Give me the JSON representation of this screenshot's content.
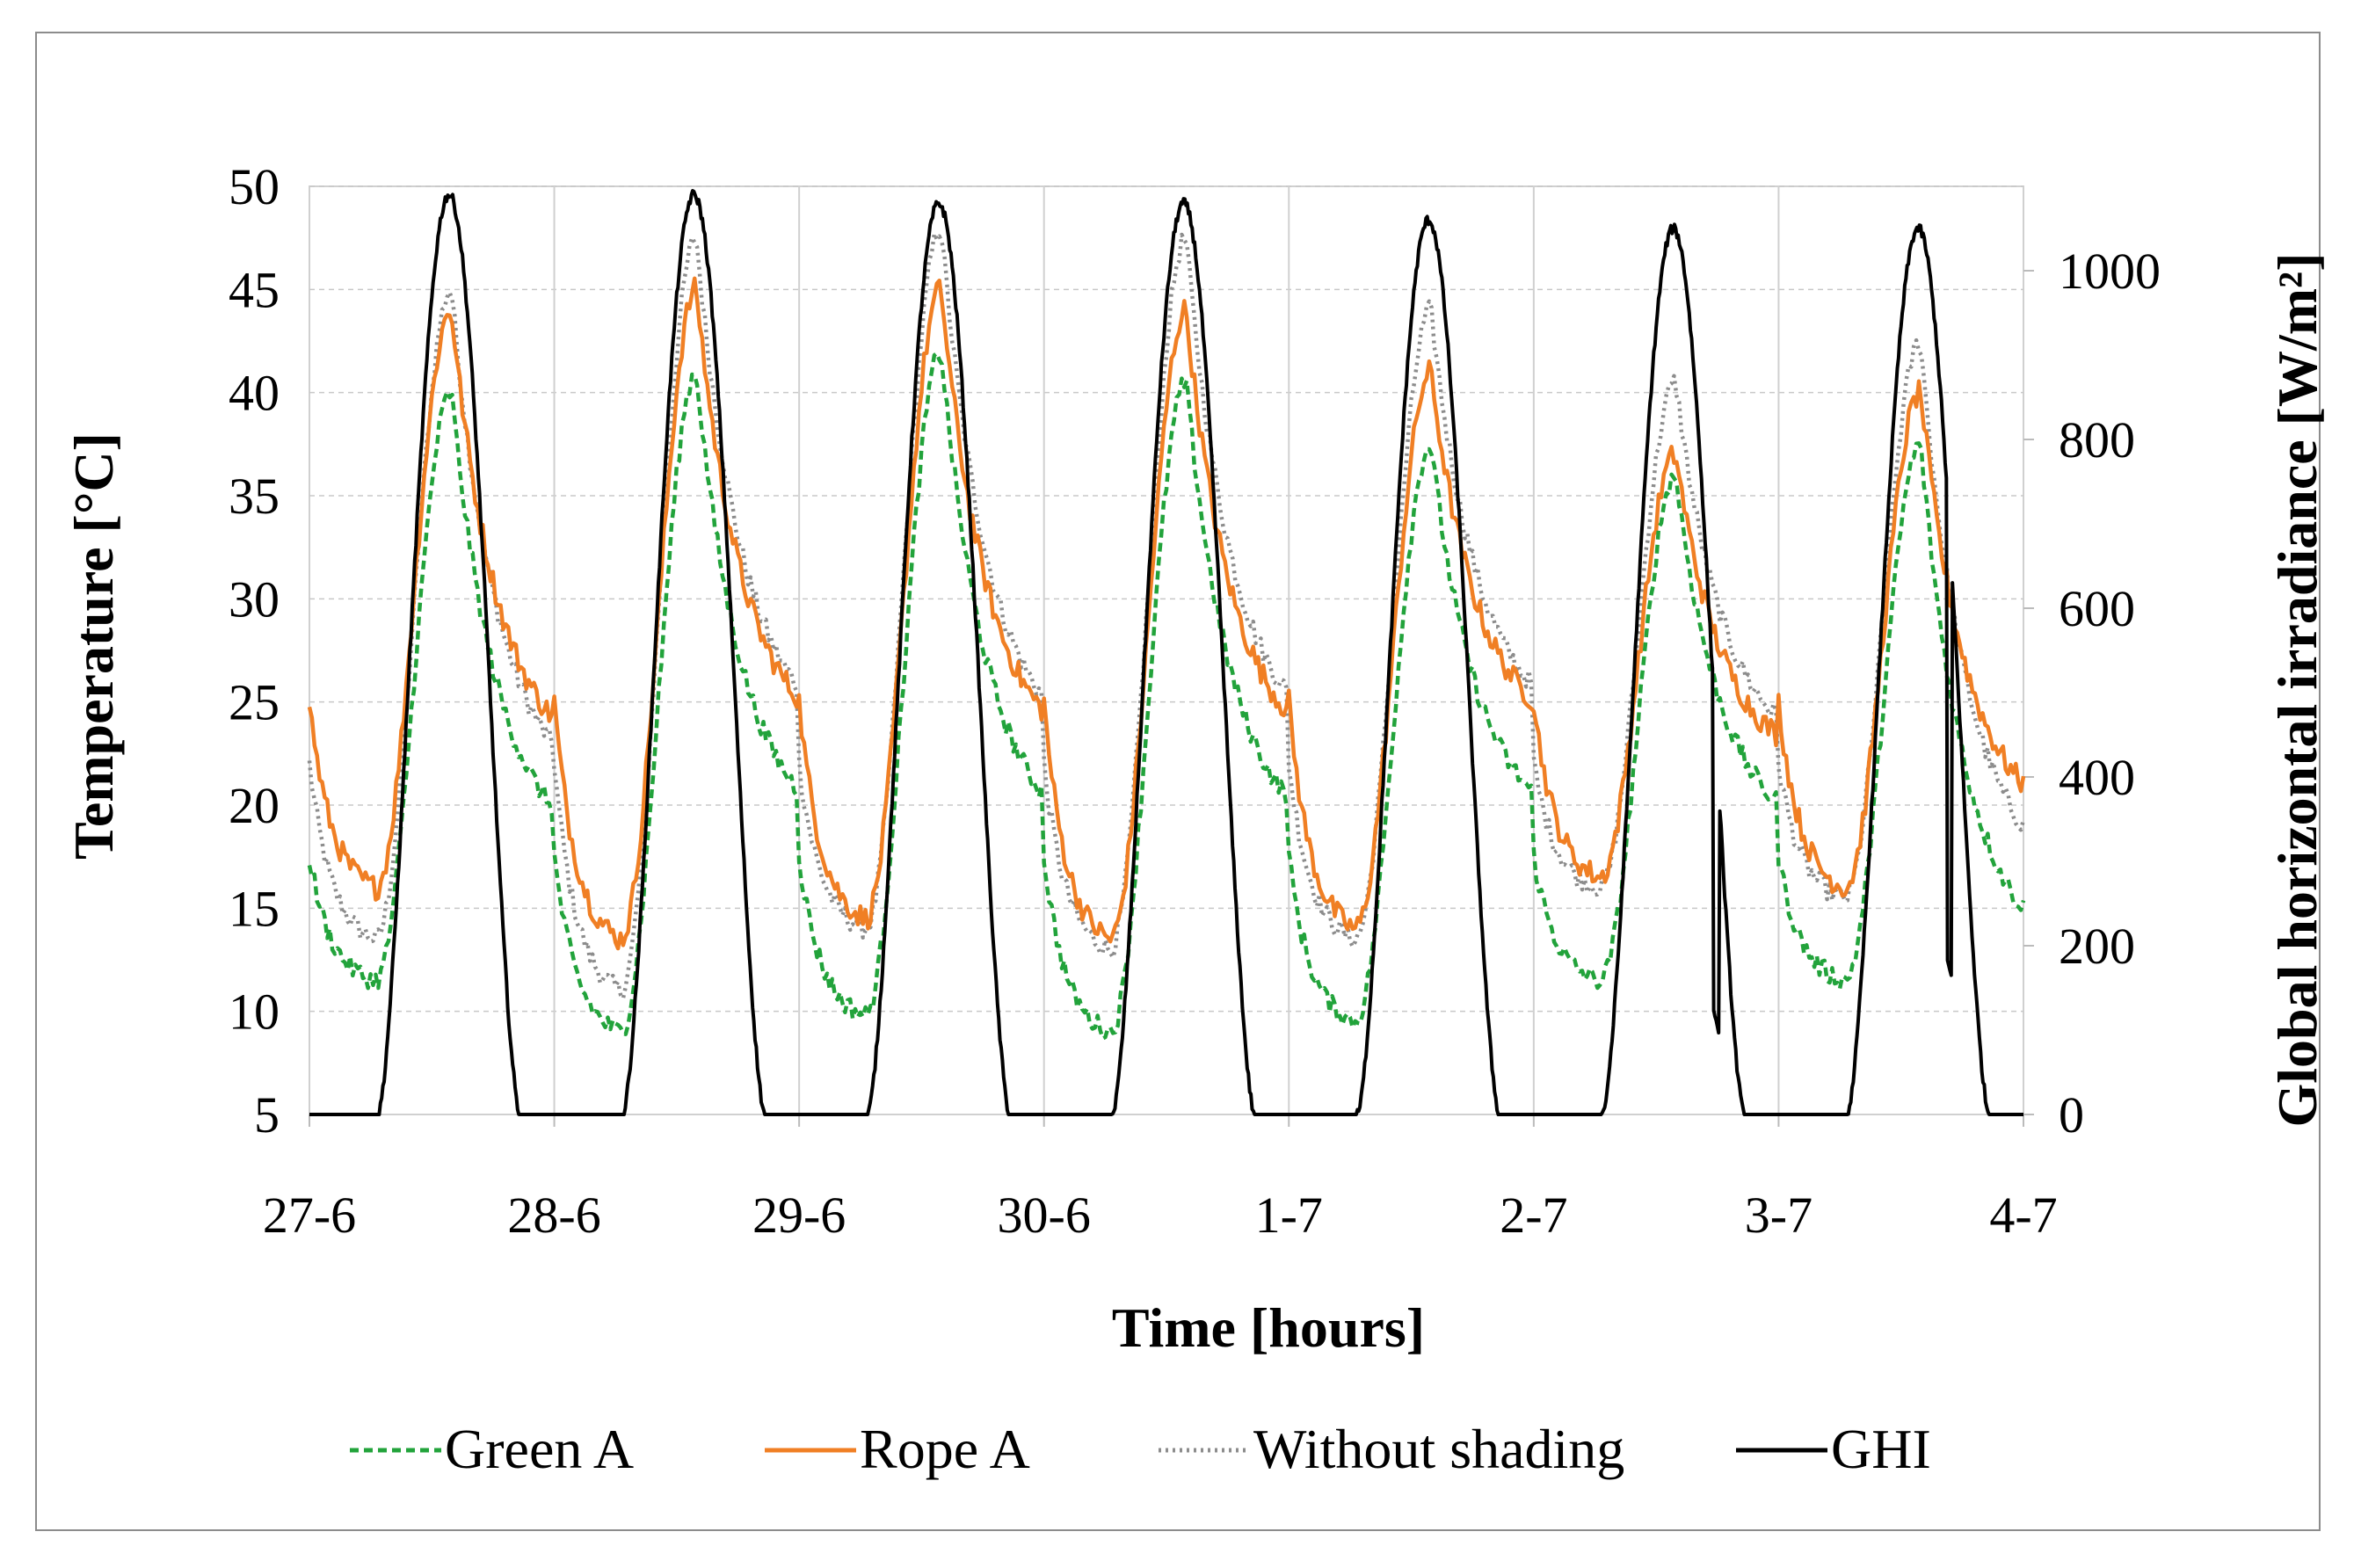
{
  "chart_data": {
    "type": "line",
    "title": "",
    "xlabel": "Time [hours]",
    "ylabel": "Temperature [°C]",
    "y2label": "Global horizontal irradiance [W/m²]",
    "x_ticks": [
      "27-6",
      "28-6",
      "29-6",
      "30-6",
      "1-7",
      "2-7",
      "3-7",
      "4-7"
    ],
    "ylim": [
      5,
      50
    ],
    "y_ticks": [
      5,
      10,
      15,
      20,
      25,
      30,
      35,
      40,
      45,
      50
    ],
    "y2lim": [
      0,
      1100
    ],
    "y2_ticks": [
      0,
      200,
      400,
      600,
      800,
      1000
    ],
    "grid": "horizontal dashed + vertical day lines",
    "legend_position": "bottom",
    "series": [
      {
        "name": "Green A",
        "axis": "left",
        "color": "#22a33b",
        "style": "dashed",
        "daily_min": [
          11.5,
          9,
          9.8,
          9,
          9.5,
          11.5,
          11.5
        ],
        "daily_max": [
          40,
          41,
          42,
          40.5,
          37.5,
          36,
          37.5
        ],
        "end_value": 15
      },
      {
        "name": "Rope A",
        "axis": "left",
        "color": "#f07f24",
        "style": "solid",
        "start_value": 25,
        "daily_min": [
          16,
          13.5,
          14.5,
          13.5,
          14,
          16.5,
          16
        ],
        "daily_max": [
          44,
          45,
          45,
          44,
          41,
          37,
          40
        ],
        "end_value": 21
      },
      {
        "name": "Without shading",
        "axis": "left",
        "color": "#8c8c8c",
        "style": "dotted",
        "start_value": 22,
        "daily_min": [
          13.5,
          11,
          14,
          13,
          13.5,
          16,
          15.5
        ],
        "daily_max": [
          45,
          47.5,
          48,
          47.5,
          44,
          40.5,
          42.5
        ],
        "end_value": 19
      },
      {
        "name": "GHI",
        "axis": "right",
        "color": "#000000",
        "style": "solid",
        "daily_peak": [
          1090,
          1090,
          1080,
          1080,
          1060,
          1050,
          1050
        ]
      }
    ]
  },
  "legend": {
    "items": [
      {
        "label": "Green A",
        "color": "#22a33b",
        "dash": "10 6"
      },
      {
        "label": "Rope A",
        "color": "#f07f24",
        "dash": ""
      },
      {
        "label": "Without shading",
        "color": "#8c8c8c",
        "dash": "3 5"
      },
      {
        "label": "GHI",
        "color": "#000000",
        "dash": ""
      }
    ]
  }
}
